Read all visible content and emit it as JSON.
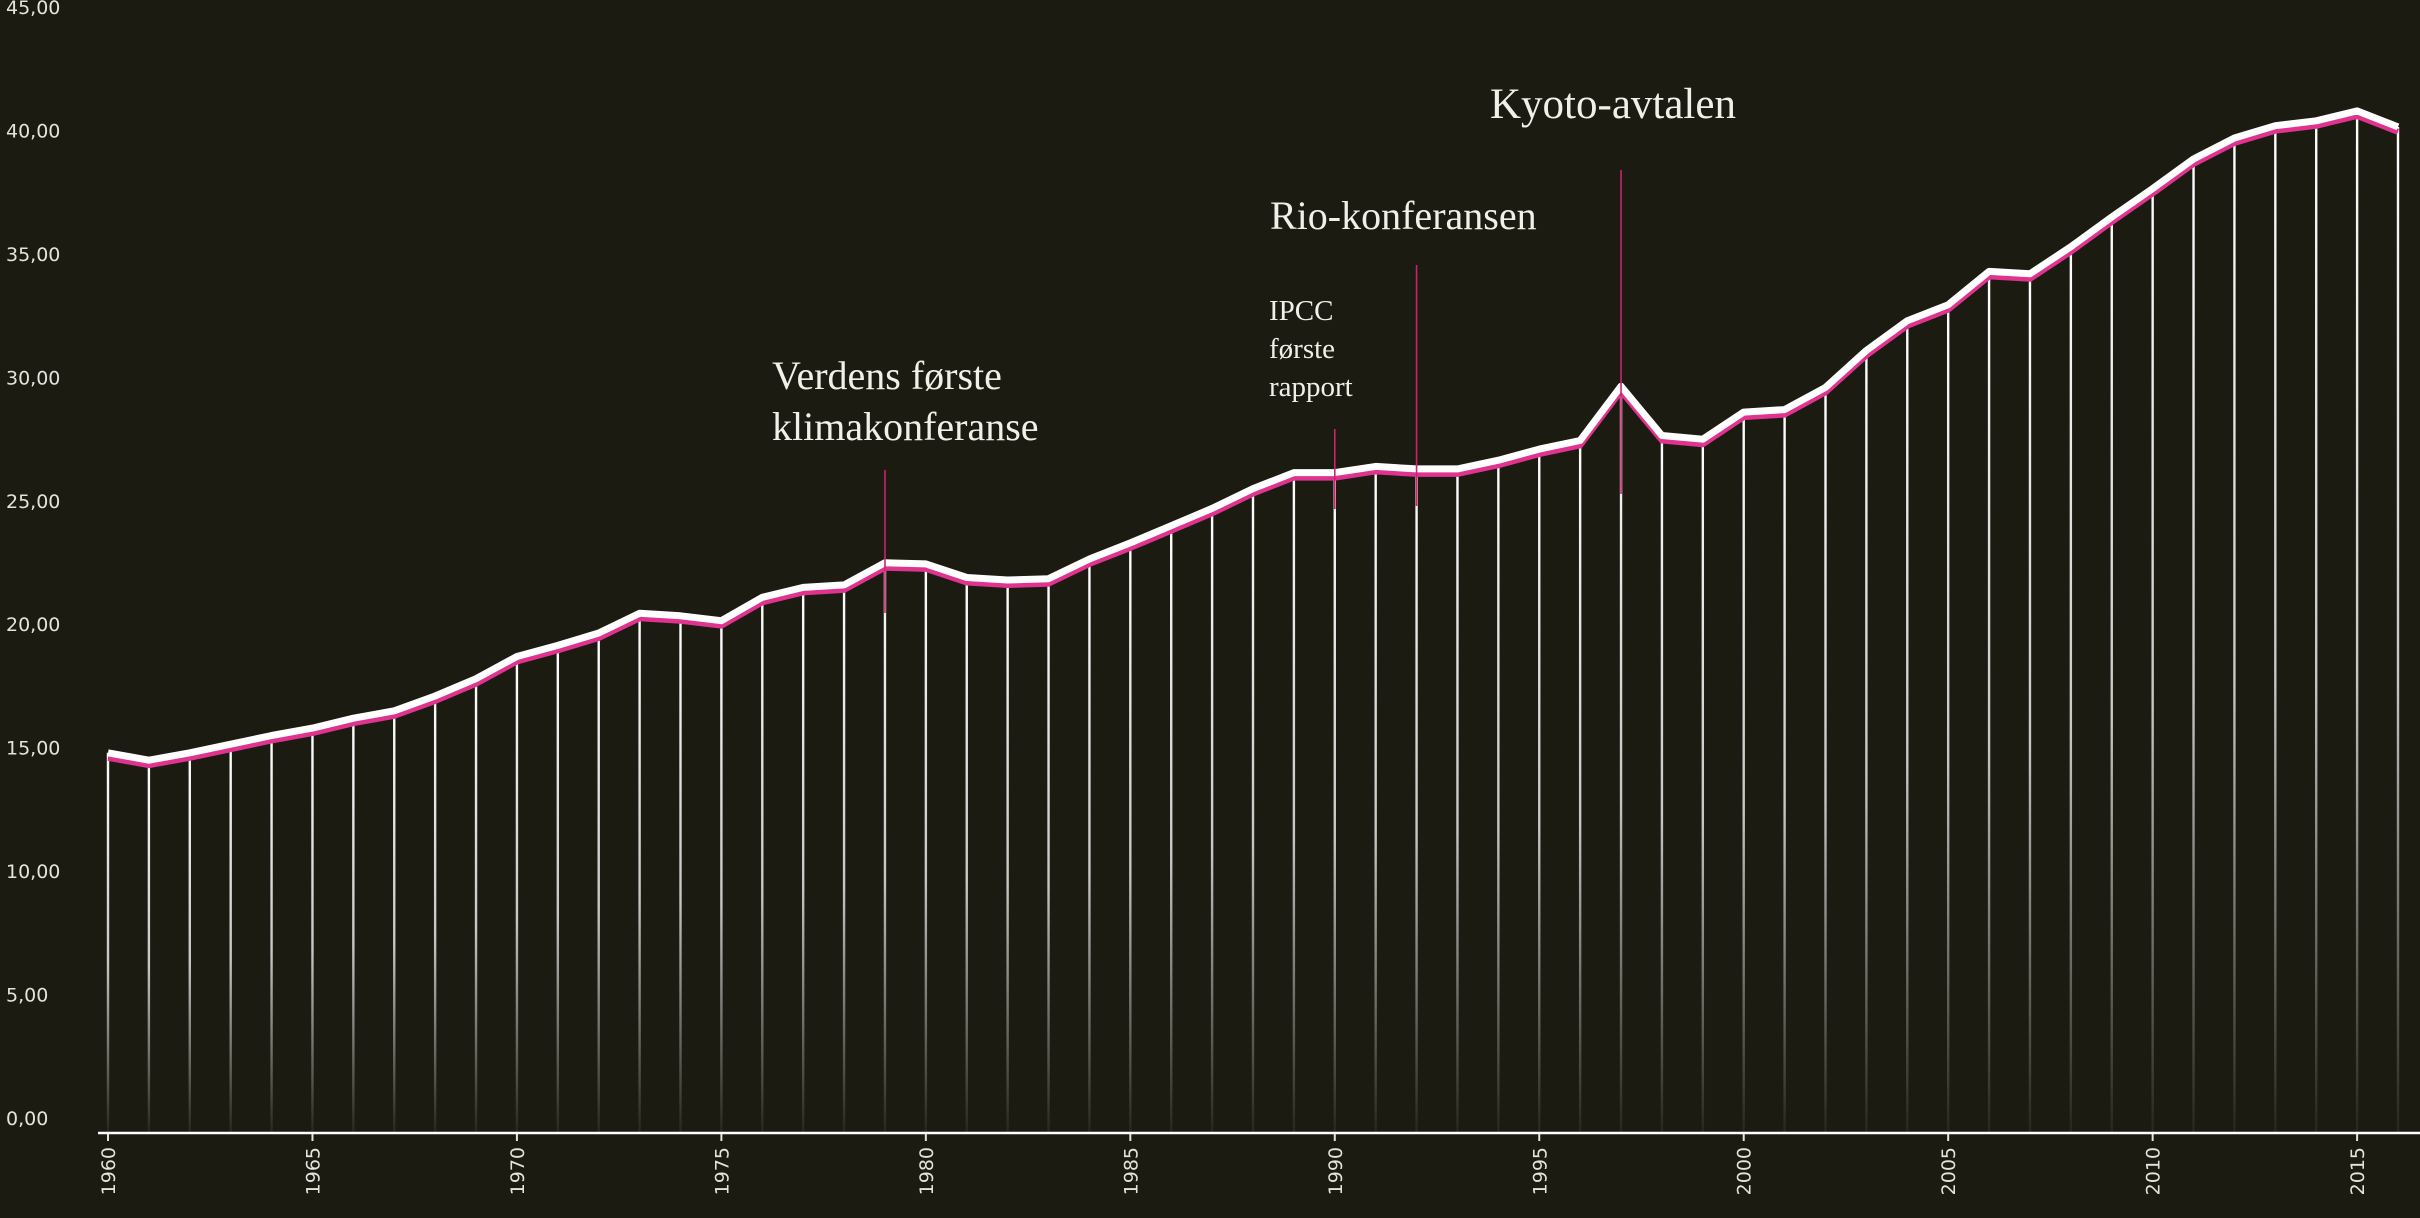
{
  "chart_data": {
    "type": "line",
    "x": [
      1960,
      1961,
      1962,
      1963,
      1964,
      1965,
      1966,
      1967,
      1968,
      1969,
      1970,
      1971,
      1972,
      1973,
      1974,
      1975,
      1976,
      1977,
      1978,
      1979,
      1980,
      1981,
      1982,
      1983,
      1984,
      1985,
      1986,
      1987,
      1988,
      1989,
      1990,
      1991,
      1992,
      1993,
      1994,
      1995,
      1996,
      1997,
      1998,
      1999,
      2000,
      2001,
      2002,
      2003,
      2004,
      2005,
      2006,
      2007,
      2008,
      2009,
      2010,
      2011,
      2012,
      2013,
      2014,
      2015,
      2016
    ],
    "series": [
      {
        "color": "#ffffff",
        "values": [
          15.4,
          15.1,
          15.4,
          15.75,
          16.1,
          16.4,
          16.8,
          17.1,
          17.7,
          18.4,
          19.3,
          19.75,
          20.25,
          21.05,
          20.95,
          20.75,
          21.7,
          22.1,
          22.2,
          23.1,
          23.05,
          22.5,
          22.4,
          22.45,
          23.25,
          23.9,
          24.6,
          25.3,
          26.1,
          26.75,
          26.75,
          27.0,
          26.9,
          26.9,
          27.25,
          27.7,
          28.05,
          30.25,
          28.25,
          28.1,
          29.2,
          29.3,
          30.2,
          31.7,
          32.9,
          33.55,
          34.9,
          34.8,
          35.9,
          37.1,
          38.25,
          39.45,
          40.3,
          40.8,
          41.0,
          41.4,
          40.75
        ]
      }
    ],
    "shadow_color": "#e0338f",
    "annotation_color": "#d0206f",
    "xlim": [
      1960,
      2016
    ],
    "xticks": [
      1960,
      1965,
      1970,
      1975,
      1980,
      1985,
      1990,
      1995,
      2000,
      2005,
      2010,
      2015
    ],
    "ylim": [
      0,
      45
    ],
    "yticks": [
      {
        "value": 0,
        "label": "0,00"
      },
      {
        "value": 5,
        "label": "5,00"
      },
      {
        "value": 10,
        "label": "10,00"
      },
      {
        "value": 15,
        "label": "15,00"
      },
      {
        "value": 20,
        "label": "20,00"
      },
      {
        "value": 25,
        "label": "25,00"
      },
      {
        "value": 30,
        "label": "30,00"
      },
      {
        "value": 35,
        "label": "35,00"
      },
      {
        "value": 40,
        "label": "40,00"
      },
      {
        "value": 45,
        "label": "45,00"
      }
    ],
    "annotations": [
      {
        "text": [
          "Verdens første",
          "klimakonferanse"
        ],
        "x": 1979
      },
      {
        "text": [
          "IPCC",
          "første",
          "rapport"
        ],
        "x": 1990
      },
      {
        "text": [
          "Rio-konferansen"
        ],
        "x": 1992
      },
      {
        "text": [
          "Kyoto-avtalen"
        ],
        "x": 1997
      }
    ]
  }
}
